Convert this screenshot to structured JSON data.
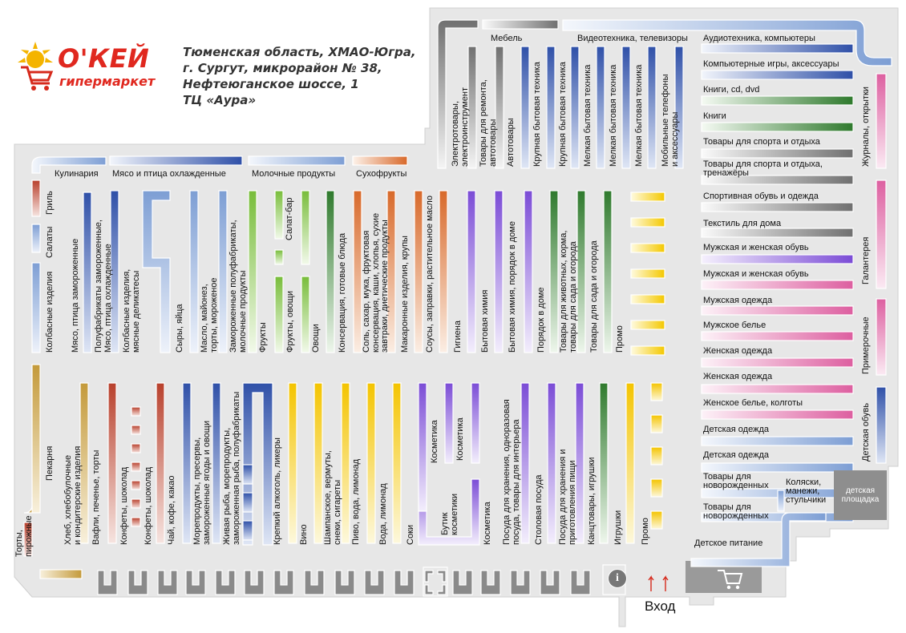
{
  "brand": {
    "name": "О'КЕЙ",
    "subtitle": "гипермаркет"
  },
  "address": [
    "Тюменская область,  ХМАО-Югра,",
    "г. Сургут,  микрорайон № 38,",
    "Нефтеюганское шоссе, 1",
    "ТЦ «Аура»"
  ],
  "colors": {
    "floor": "#e6e6e6",
    "outline": "#ffffff",
    "blue": "#3a5fb8",
    "lightblue": "#9eb8dc",
    "red": "#c8533b",
    "orange": "#d9763a",
    "yellow": "#f5d020",
    "green": "#3e8a3a",
    "lightgreen": "#8fc850",
    "purple": "#8a5fd8",
    "pink": "#e070a8",
    "gray": "#8c8c8c",
    "tan": "#c9a040"
  },
  "entrance": "Вход",
  "playground": "детская площадка",
  "icons": [
    "info-icon",
    "cart-icon",
    "entrance-arrow-icon",
    "checkout-icon",
    "sun-icon"
  ],
  "top_labels": [
    {
      "name": "culinary",
      "text": "Кулинария"
    },
    {
      "name": "meat-poultry-chilled",
      "text": "Мясо и птица охлажденные"
    },
    {
      "name": "dairy",
      "text": "Молочные продукты"
    },
    {
      "name": "dried-fruits",
      "text": "Сухофрукты"
    },
    {
      "name": "furniture",
      "text": "Мебель"
    },
    {
      "name": "video",
      "text": "Видеотехника, телевизоры"
    }
  ],
  "right_shelves": [
    "Аудиотехника, компьютеры",
    "Компьютерные игры, аксессуары",
    "Книги, cd, dvd",
    "Книги",
    "Товары для спорта и отдыха",
    "Товары для спорта и отдыха, тренажёры",
    "Спортивная обувь и одежда",
    "Текстиль для дома",
    "Мужская и женская обувь",
    "Мужская и женская обувь",
    "Мужская одежда",
    "Мужское белье",
    "Женская одежда",
    "Женская одежда",
    "Женское белье, колготы",
    "Детская одежда",
    "Детская одежда",
    "Товары для новорожденных",
    "Товары для новорожденных",
    "Коляски, манежи, стульчики",
    "Детское питание"
  ],
  "far_right": [
    "Журналы, открытки",
    "Галантерея",
    "Примерочные",
    "Детская обувь"
  ],
  "upper_aisles": [
    "Электротовары, электроинструмент",
    "Товары для ремонта, автотовары",
    "Автотовары",
    "Крупная бытовая техника",
    "Крупная бытовая техника",
    "Мелкая бытовая техника",
    "Мелкая бытовая техника",
    "Мелкая бытовая техника",
    "Мобильные телефоны и аксессуары"
  ],
  "middle_aisles": [
    "Гриль",
    "Салаты",
    "Колбасные изделия",
    "Мясо, птица замороженные",
    "Полуфабрикаты замороженные, Мясо, птица охлажденные",
    "Колбасные изделия, мясные деликатесы",
    "Сыры, яйца",
    "Масло, майонез, торты, мороженое",
    "Замороженные полуфабрикаты, молочные продукты",
    "Фрукты",
    "Салат-бар",
    "Фрукты, овощи",
    "Овощи",
    "Консервация, готовые блюда",
    "Соль, сахар, мука, фруктовая консервация, каши, хлопья, сухие завтраки, диетические продукты",
    "Макаронные изделия, крупы",
    "Соусы, заправки, растительное масло",
    "Гигиена",
    "Бытовая химия",
    "Бытовая химия, порядок в доме",
    "Порядок в доме",
    "Товары для животных, корма, товары для сада и огорода",
    "Товары для сада и огорода",
    "Промо"
  ],
  "lower_aisles": [
    "Торты, пирожные",
    "Пекарня",
    "Хлеб, хлебобулочные и кондитерские изделия",
    "Вафли, печенье, торты",
    "Конфеты, шоколад",
    "Конфеты, шоколад",
    "Чай, кофе, какао",
    "Морепродукты, пресервы, замороженные ягоды и овощи",
    "Живая рыба, морепродукты, замороженная рыба, полуфабрикаты",
    "Крепкий алкоголь, ликеры",
    "Вино",
    "Шампанское, вермуты, снеки, сигареты",
    "Пиво, вода, лимонад",
    "Вода, лимонад",
    "Соки",
    "Косметика",
    "Косметика",
    "Бутик косметики",
    "Косметика",
    "Посуда для хранения, одноразовая посуда, товары для интерьера",
    "Столовая посуда",
    "Посуда для хранения и приготовления пищи",
    "Канцтовары, игрушки",
    "Игрушки",
    "Промо"
  ]
}
